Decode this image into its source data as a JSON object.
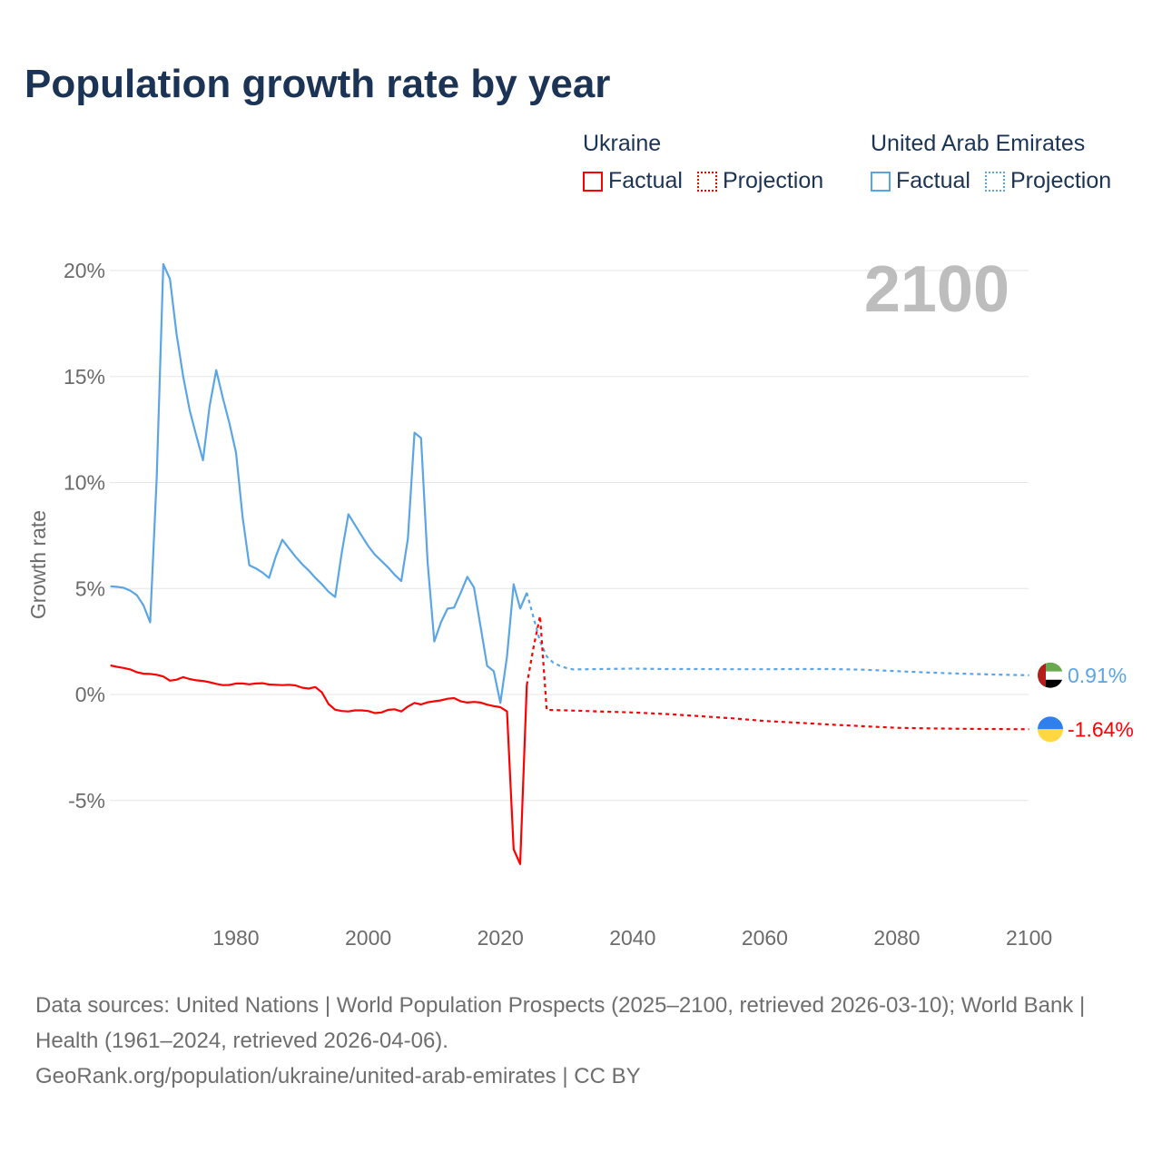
{
  "chart_data": {
    "type": "line",
    "title": "Population growth rate by year",
    "xlabel": "",
    "ylabel": "Growth rate",
    "xlim": [
      1961,
      2100
    ],
    "ylim": [
      -10,
      22
    ],
    "grid": true,
    "year_label": "2100",
    "x_ticks": [
      "1980",
      "2000",
      "2020",
      "2040",
      "2060",
      "2080",
      "2100"
    ],
    "x_tick_values": [
      1980,
      2000,
      2020,
      2040,
      2060,
      2080,
      2100
    ],
    "y_ticks": [
      "20%",
      "15%",
      "10%",
      "5%",
      "0%",
      "-5%"
    ],
    "y_tick_values": [
      20,
      15,
      10,
      5,
      0,
      -5
    ],
    "legend": {
      "placement": "top-right",
      "groups": [
        {
          "name": "Ukraine",
          "factual": "Factual",
          "projection": "Projection"
        },
        {
          "name": "United Arab Emirates",
          "factual": "Factual",
          "projection": "Projection"
        }
      ]
    },
    "series": [
      {
        "name": "United Arab Emirates",
        "color": "#5aa5e6",
        "end_label": "0.91%",
        "flag": "uae-flag",
        "factual": {
          "x": [
            1961,
            1962,
            1963,
            1964,
            1965,
            1966,
            1967,
            1968,
            1969,
            1970,
            1971,
            1972,
            1973,
            1974,
            1975,
            1976,
            1977,
            1978,
            1979,
            1980,
            1981,
            1982,
            1983,
            1984,
            1985,
            1986,
            1987,
            1988,
            1989,
            1990,
            1991,
            1992,
            1993,
            1994,
            1995,
            1996,
            1997,
            1998,
            1999,
            2000,
            2001,
            2002,
            2003,
            2004,
            2005,
            2006,
            2007,
            2008,
            2009,
            2010,
            2011,
            2012,
            2013,
            2014,
            2015,
            2016,
            2017,
            2018,
            2019,
            2020,
            2021,
            2022,
            2023,
            2024
          ],
          "y": [
            5.1,
            5.08,
            5.03,
            4.9,
            4.68,
            4.2,
            3.4,
            10.2,
            20.3,
            19.6,
            17.0,
            15.0,
            13.4,
            12.2,
            11.05,
            13.6,
            15.3,
            14.0,
            12.8,
            11.4,
            8.35,
            6.1,
            5.95,
            5.75,
            5.5,
            6.5,
            7.3,
            6.9,
            6.5,
            6.15,
            5.85,
            5.5,
            5.2,
            4.85,
            4.6,
            6.7,
            8.5,
            8.0,
            7.5,
            7.0,
            6.6,
            6.3,
            6.0,
            5.65,
            5.35,
            7.35,
            12.35,
            12.1,
            6.2,
            2.5,
            3.4,
            4.05,
            4.1,
            4.8,
            5.55,
            5.05,
            3.2,
            1.35,
            1.1,
            -0.4,
            1.8,
            5.2,
            4.05,
            4.8
          ]
        },
        "projection": {
          "x": [
            2024,
            2025,
            2026,
            2027,
            2028,
            2029,
            2030,
            2031,
            2035,
            2040,
            2045,
            2050,
            2055,
            2060,
            2065,
            2070,
            2075,
            2080,
            2085,
            2090,
            2095,
            2100
          ],
          "y": [
            4.8,
            3.65,
            2.5,
            1.8,
            1.5,
            1.35,
            1.25,
            1.18,
            1.2,
            1.22,
            1.2,
            1.2,
            1.19,
            1.19,
            1.2,
            1.2,
            1.17,
            1.1,
            1.03,
            0.98,
            0.94,
            0.91
          ]
        }
      },
      {
        "name": "Ukraine",
        "color": "#ff0000",
        "end_label": "-1.64%",
        "flag": "ukraine-flag",
        "factual": {
          "x": [
            1961,
            1962,
            1963,
            1964,
            1965,
            1966,
            1967,
            1968,
            1969,
            1970,
            1971,
            1972,
            1973,
            1974,
            1975,
            1976,
            1977,
            1978,
            1979,
            1980,
            1981,
            1982,
            1983,
            1984,
            1985,
            1986,
            1987,
            1988,
            1989,
            1990,
            1991,
            1992,
            1993,
            1994,
            1995,
            1996,
            1997,
            1998,
            1999,
            2000,
            2001,
            2002,
            2003,
            2004,
            2005,
            2006,
            2007,
            2008,
            2009,
            2010,
            2011,
            2012,
            2013,
            2014,
            2015,
            2016,
            2017,
            2018,
            2019,
            2020,
            2021,
            2022,
            2023,
            2024
          ],
          "y": [
            1.37,
            1.3,
            1.25,
            1.18,
            1.05,
            0.98,
            0.97,
            0.93,
            0.85,
            0.65,
            0.7,
            0.82,
            0.73,
            0.67,
            0.64,
            0.58,
            0.5,
            0.44,
            0.45,
            0.52,
            0.52,
            0.48,
            0.52,
            0.53,
            0.47,
            0.46,
            0.44,
            0.46,
            0.43,
            0.32,
            0.28,
            0.35,
            0.1,
            -0.45,
            -0.72,
            -0.78,
            -0.8,
            -0.75,
            -0.75,
            -0.78,
            -0.88,
            -0.85,
            -0.73,
            -0.7,
            -0.8,
            -0.57,
            -0.4,
            -0.47,
            -0.37,
            -0.32,
            -0.28,
            -0.2,
            -0.17,
            -0.32,
            -0.38,
            -0.35,
            -0.38,
            -0.48,
            -0.55,
            -0.6,
            -0.8,
            -7.3,
            -8.0,
            0.45
          ]
        },
        "projection": {
          "x": [
            2024,
            2025,
            2026,
            2027,
            2030,
            2035,
            2040,
            2045,
            2050,
            2055,
            2060,
            2065,
            2070,
            2075,
            2080,
            2085,
            2090,
            2095,
            2100
          ],
          "y": [
            0.45,
            2.2,
            3.7,
            -0.73,
            -0.75,
            -0.8,
            -0.85,
            -0.92,
            -1.02,
            -1.12,
            -1.25,
            -1.33,
            -1.42,
            -1.5,
            -1.57,
            -1.6,
            -1.62,
            -1.63,
            -1.64
          ]
        }
      }
    ]
  },
  "footer": {
    "source_line": "Data sources: United Nations | World Population Prospects (2025–2100, retrieved 2026-03-10); World Bank | Health (1961–2024, retrieved 2026-04-06).",
    "credit": "GeoRank.org/population/ukraine/united-arab-emirates | CC BY"
  }
}
